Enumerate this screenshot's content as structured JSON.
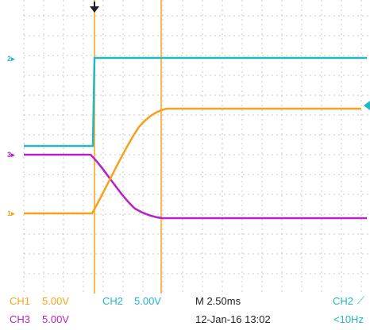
{
  "channel_markers": {
    "ch2": "2",
    "ch3": "3",
    "ch1": "1"
  },
  "status_bar": {
    "ch1_label": "CH1",
    "ch1_scale": "5.00V",
    "ch2_label": "CH2",
    "ch2_scale": "5.00V",
    "timebase": "M 2.50ms",
    "trigger_source": "CH2",
    "trigger_slope_symbol": "⟋",
    "ch3_label": "CH3",
    "ch3_scale": "5.00V",
    "datetime": "12-Jan-16 13:02",
    "trigger_freq": "<10Hz"
  },
  "colors": {
    "ch1": "#f7a21b",
    "ch2": "#22b8c4",
    "ch3": "#b623c4",
    "grid": "#c8c8c8",
    "cursor": "#f7a21b",
    "trigger_marker": "#222222"
  },
  "icons": {
    "trigger_position": "trigger-arrow-icon",
    "ch2_level": "level-arrow-icon"
  }
}
